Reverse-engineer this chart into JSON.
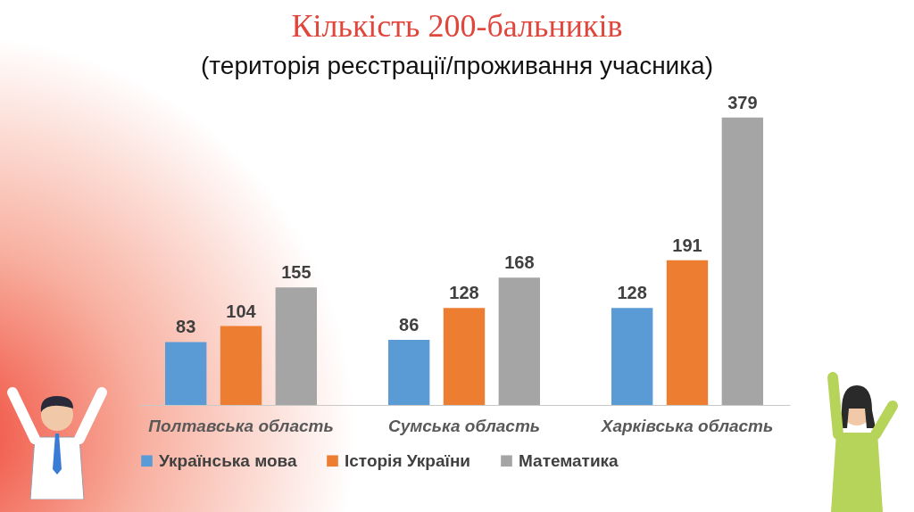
{
  "chart_data": {
    "type": "bar",
    "title": "Кількість 200-бальників",
    "subtitle": "(територія реєстрації/проживання учасника)",
    "categories": [
      "Полтавська область",
      "Сумська область",
      "Харківська область"
    ],
    "series": [
      {
        "name": "Українська мова",
        "color": "#5b9bd5",
        "values": [
          83,
          86,
          128
        ]
      },
      {
        "name": "Історія України",
        "color": "#ed7d31",
        "values": [
          104,
          128,
          191
        ]
      },
      {
        "name": "Математика",
        "color": "#a5a5a5",
        "values": [
          155,
          168,
          379
        ]
      }
    ],
    "data_labels": true,
    "legend": "bottom"
  }
}
